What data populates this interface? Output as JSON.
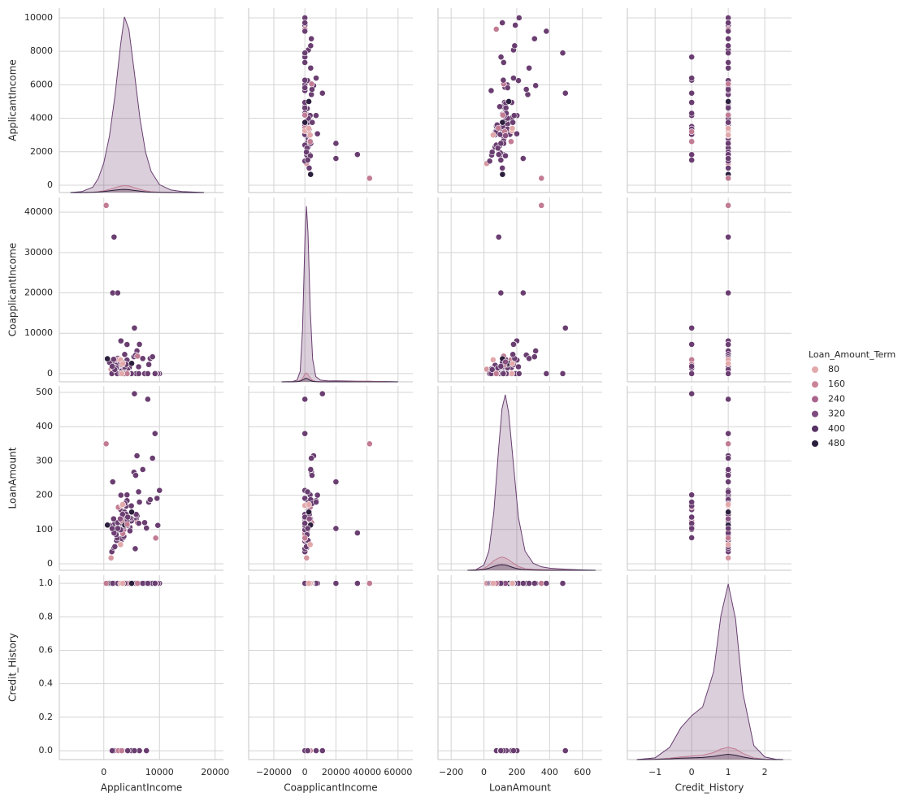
{
  "chart_data": {
    "type": "pairplot",
    "variables": [
      {
        "name": "ApplicantIncome",
        "xlim": [
          -8000,
          21500
        ],
        "xticks": [
          0,
          10000,
          20000
        ],
        "ylim": [
          -437,
          10580
        ],
        "yticks": [
          0,
          2000,
          4000,
          6000,
          8000,
          10000
        ]
      },
      {
        "name": "CoapplicantIncome",
        "xlim": [
          -36200,
          69500
        ],
        "xticks": [
          {
            "value": -20000,
            "label": "−20000"
          },
          0,
          20000,
          40000,
          60000
        ],
        "ylim": [
          -2030,
          43650
        ],
        "yticks": [
          0,
          10000,
          20000,
          30000,
          40000
        ]
      },
      {
        "name": "LoanAmount",
        "xlim": [
          -280,
          720
        ],
        "xticks": [
          {
            "value": -200,
            "label": "−200"
          },
          0,
          200,
          400,
          600
        ],
        "ylim": [
          -19,
          519
        ],
        "yticks": [
          0,
          100,
          200,
          300,
          400,
          500
        ]
      },
      {
        "name": "Credit_History",
        "xlim": [
          -1.76,
          2.73
        ],
        "xticks": [
          {
            "value": -1,
            "label": "−1"
          },
          0,
          1,
          2
        ],
        "ylim": [
          -0.053,
          1.049
        ],
        "yticks": [
          {
            "value": 0,
            "label": "0.0"
          },
          {
            "value": 0.2,
            "label": "0.2"
          },
          {
            "value": 0.4,
            "label": "0.4"
          },
          {
            "value": 0.6,
            "label": "0.6"
          },
          {
            "value": 0.8,
            "label": "0.8"
          },
          {
            "value": 1,
            "label": "1.0"
          }
        ]
      }
    ],
    "grid": true,
    "legend": {
      "title": "Loan_Amount_Term",
      "position": "right",
      "entries": [
        {
          "value": 80,
          "color": "#e2a9ab"
        },
        {
          "value": 160,
          "color": "#c98497"
        },
        {
          "value": 240,
          "color": "#a9648c"
        },
        {
          "value": 320,
          "color": "#7e4a7f"
        },
        {
          "value": 400,
          "color": "#563163"
        },
        {
          "value": 480,
          "color": "#2c1e3d"
        }
      ]
    },
    "points": [
      [
        5849,
        0,
        128,
        1,
        360
      ],
      [
        4583,
        1508,
        128,
        1,
        360
      ],
      [
        3000,
        0,
        66,
        1,
        360
      ],
      [
        2583,
        2358,
        120,
        1,
        360
      ],
      [
        6000,
        0,
        141,
        1,
        360
      ],
      [
        5417,
        4196,
        267,
        1,
        360
      ],
      [
        2333,
        1516,
        95,
        1,
        360
      ],
      [
        3036,
        2504,
        158,
        0,
        360
      ],
      [
        4006,
        1526,
        168,
        1,
        360
      ],
      [
        3200,
        700,
        70,
        1,
        360
      ],
      [
        2500,
        1840,
        109,
        1,
        360
      ],
      [
        3073,
        8106,
        200,
        1,
        360
      ],
      [
        1853,
        2840,
        114,
        1,
        360
      ],
      [
        1299,
        1086,
        17,
        1,
        120
      ],
      [
        4950,
        0,
        125,
        1,
        360
      ],
      [
        3596,
        0,
        100,
        1,
        240
      ],
      [
        3510,
        0,
        76,
        0,
        360
      ],
      [
        4887,
        0,
        133,
        1,
        360
      ],
      [
        2600,
        3500,
        115,
        1,
        360
      ],
      [
        7660,
        0,
        104,
        0,
        360
      ],
      [
        5955,
        5625,
        315,
        1,
        360
      ],
      [
        2600,
        1911,
        116,
        0,
        360
      ],
      [
        3365,
        1917,
        112,
        0,
        360
      ],
      [
        3717,
        2925,
        151,
        1,
        360
      ],
      [
        9560,
        0,
        191,
        1,
        360
      ],
      [
        2799,
        2253,
        122,
        1,
        360
      ],
      [
        4226,
        1040,
        110,
        1,
        360
      ],
      [
        1442,
        0,
        35,
        1,
        360
      ],
      [
        3750,
        2083,
        120,
        1,
        360
      ],
      [
        4166,
        3369,
        201,
        0,
        360
      ],
      [
        3167,
        0,
        74,
        1,
        360
      ],
      [
        4692,
        0,
        106,
        1,
        360
      ],
      [
        3500,
        1667,
        114,
        1,
        360
      ],
      [
        2275,
        2067,
        68,
        1,
        360
      ],
      [
        1828,
        1330,
        100,
        0,
        360
      ],
      [
        3667,
        1459,
        144,
        1,
        360
      ],
      [
        4166,
        7210,
        184,
        1,
        360
      ],
      [
        3748,
        1668,
        110,
        1,
        360
      ],
      [
        3600,
        0,
        80,
        1,
        360
      ],
      [
        1800,
        1213,
        47,
        1,
        360
      ],
      [
        2400,
        0,
        75,
        1,
        360
      ],
      [
        3941,
        2336,
        134,
        1,
        360
      ],
      [
        4695,
        0,
        96,
        1,
        360
      ],
      [
        3410,
        0,
        88,
        1,
        180
      ],
      [
        5649,
        0,
        44,
        1,
        360
      ],
      [
        5821,
        0,
        144,
        1,
        360
      ],
      [
        2645,
        3440,
        120,
        0,
        360
      ],
      [
        4000,
        2275,
        144,
        1,
        360
      ],
      [
        1928,
        1644,
        100,
        1,
        360
      ],
      [
        3086,
        0,
        120,
        1,
        360
      ],
      [
        4230,
        0,
        112,
        1,
        360
      ],
      [
        4616,
        0,
        134,
        1,
        360
      ],
      [
        8080,
        2250,
        180,
        1,
        360
      ],
      [
        3357,
        2859,
        144,
        1,
        360
      ],
      [
        2500,
        3796,
        120,
        1,
        360
      ],
      [
        3029,
        0,
        99,
        1,
        360
      ],
      [
        2609,
        3449,
        165,
        0,
        180
      ],
      [
        4945,
        0,
        169,
        0,
        360
      ],
      [
        4166,
        0,
        126,
        0,
        360
      ],
      [
        5726,
        4595,
        258,
        1,
        360
      ],
      [
        3200,
        2254,
        126,
        0,
        180
      ],
      [
        10000,
        0,
        214,
        1,
        360
      ],
      [
        2214,
        1398,
        85,
        1,
        360
      ],
      [
        6250,
        1695,
        210,
        1,
        360
      ],
      [
        4300,
        0,
        136,
        0,
        360
      ],
      [
        8333,
        3750,
        187,
        1,
        360
      ],
      [
        1025,
        2773,
        112,
        1,
        360
      ],
      [
        3750,
        0,
        113,
        1,
        480
      ],
      [
        1977,
        997,
        50,
        1,
        360
      ],
      [
        4188,
        0,
        115,
        1,
        180
      ],
      [
        1759,
        3541,
        131,
        1,
        360
      ],
      [
        6050,
        4333,
        120,
        1,
        180
      ],
      [
        7333,
        0,
        120,
        1,
        360
      ],
      [
        3750,
        4750,
        176,
        1,
        360
      ],
      [
        9703,
        0,
        112,
        1,
        360
      ],
      [
        6277,
        0,
        118,
        0,
        360
      ],
      [
        5000,
        2541,
        151,
        1,
        480
      ],
      [
        645,
        3683,
        113,
        1,
        480
      ],
      [
        2958,
        2900,
        131,
        1,
        300
      ],
      [
        6400,
        7250,
        180,
        0,
        360
      ],
      [
        3250,
        0,
        170,
        1,
        60
      ],
      [
        8750,
        4167,
        308,
        1,
        360
      ],
      [
        7000,
        3750,
        275,
        1,
        360
      ],
      [
        416,
        41667,
        350,
        1,
        180
      ],
      [
        1836,
        33837,
        90,
        1,
        360
      ],
      [
        1600,
        20000,
        239,
        1,
        360
      ],
      [
        2500,
        20000,
        103,
        1,
        360
      ],
      [
        5500,
        11300,
        496,
        0,
        360
      ],
      [
        7900,
        0,
        480,
        1,
        360
      ],
      [
        9323,
        0,
        75,
        1,
        180
      ],
      [
        9200,
        0,
        380,
        1,
        360
      ],
      [
        3000,
        3416,
        56,
        1,
        84
      ],
      [
        1500,
        1800,
        103,
        0,
        360
      ],
      [
        3400,
        2500,
        173,
        1,
        36
      ]
    ],
    "kde_ylim": [
      0,
      1.05
    ],
    "kde": [
      {
        "x": [
          -6000,
          -4000,
          -2000,
          -1000,
          0,
          1000,
          2000,
          3000,
          3700,
          4500,
          5500,
          6500,
          7500,
          8500,
          10000,
          12000,
          14000,
          16000,
          18000
        ],
        "series": [
          {
            "hue": 360,
            "values": [
              0,
              0.005,
              0.03,
              0.08,
              0.17,
              0.32,
              0.55,
              0.84,
              1.0,
              0.93,
              0.68,
              0.42,
              0.23,
              0.12,
              0.045,
              0.015,
              0.006,
              0.003,
              0
            ]
          },
          {
            "hue": 180,
            "values": [
              0,
              0,
              0.002,
              0.005,
              0.01,
              0.018,
              0.028,
              0.036,
              0.04,
              0.037,
              0.028,
              0.018,
              0.01,
              0.005,
              0.002,
              0.001,
              0,
              0,
              0
            ]
          },
          {
            "hue": 480,
            "values": [
              0,
              0,
              0.001,
              0.003,
              0.006,
              0.01,
              0.014,
              0.017,
              0.018,
              0.016,
              0.012,
              0.008,
              0.004,
              0.002,
              0.001,
              0,
              0,
              0,
              0
            ]
          }
        ]
      },
      {
        "x": [
          -15000,
          -8000,
          -5000,
          -3000,
          -1500,
          0,
          1000,
          2000,
          3500,
          5000,
          7000,
          10000,
          15000,
          20000,
          30000,
          40000,
          50000,
          60000
        ],
        "series": [
          {
            "hue": 360,
            "values": [
              0,
              0.002,
              0.01,
              0.06,
              0.3,
              0.8,
              1.0,
              0.85,
              0.4,
              0.13,
              0.03,
              0.01,
              0.005,
              0.006,
              0.004,
              0.003,
              0.002,
              0
            ]
          },
          {
            "hue": 180,
            "values": [
              0,
              0.001,
              0.003,
              0.008,
              0.02,
              0.045,
              0.05,
              0.04,
              0.02,
              0.008,
              0.003,
              0.001,
              0.001,
              0.001,
              0.002,
              0.004,
              0.002,
              0
            ]
          },
          {
            "hue": 480,
            "values": [
              0,
              0,
              0.001,
              0.004,
              0.01,
              0.018,
              0.02,
              0.016,
              0.008,
              0.003,
              0.001,
              0,
              0,
              0,
              0,
              0,
              0,
              0
            ]
          }
        ]
      },
      {
        "x": [
          -100,
          -50,
          0,
          30,
          60,
          90,
          110,
          130,
          150,
          180,
          210,
          250,
          300,
          350,
          400,
          500,
          600,
          680
        ],
        "series": [
          {
            "hue": 360,
            "values": [
              0,
              0.003,
              0.03,
              0.11,
              0.33,
              0.7,
              0.92,
              1.0,
              0.9,
              0.6,
              0.3,
              0.11,
              0.04,
              0.02,
              0.012,
              0.006,
              0.002,
              0
            ]
          },
          {
            "hue": 180,
            "values": [
              0,
              0.001,
              0.01,
              0.03,
              0.055,
              0.07,
              0.075,
              0.07,
              0.06,
              0.04,
              0.022,
              0.01,
              0.005,
              0.004,
              0.003,
              0.001,
              0,
              0
            ]
          },
          {
            "hue": 480,
            "values": [
              0,
              0,
              0.004,
              0.012,
              0.022,
              0.03,
              0.032,
              0.03,
              0.025,
              0.015,
              0.008,
              0.003,
              0.001,
              0,
              0,
              0,
              0,
              0
            ]
          }
        ]
      },
      {
        "x": [
          -1.5,
          -1,
          -0.6,
          -0.3,
          0,
          0.3,
          0.6,
          0.8,
          1.0,
          1.2,
          1.4,
          1.7,
          2,
          2.3,
          2.5
        ],
        "series": [
          {
            "hue": 360,
            "values": [
              0,
              0.01,
              0.07,
              0.18,
              0.25,
              0.3,
              0.5,
              0.82,
              1.0,
              0.8,
              0.38,
              0.08,
              0.015,
              0.002,
              0
            ]
          },
          {
            "hue": 180,
            "values": [
              0,
              0.002,
              0.008,
              0.015,
              0.02,
              0.025,
              0.04,
              0.06,
              0.07,
              0.06,
              0.035,
              0.01,
              0.002,
              0,
              0
            ]
          },
          {
            "hue": 480,
            "values": [
              0,
              0.001,
              0.004,
              0.008,
              0.01,
              0.012,
              0.018,
              0.025,
              0.03,
              0.025,
              0.015,
              0.004,
              0.001,
              0,
              0
            ]
          }
        ]
      }
    ]
  }
}
